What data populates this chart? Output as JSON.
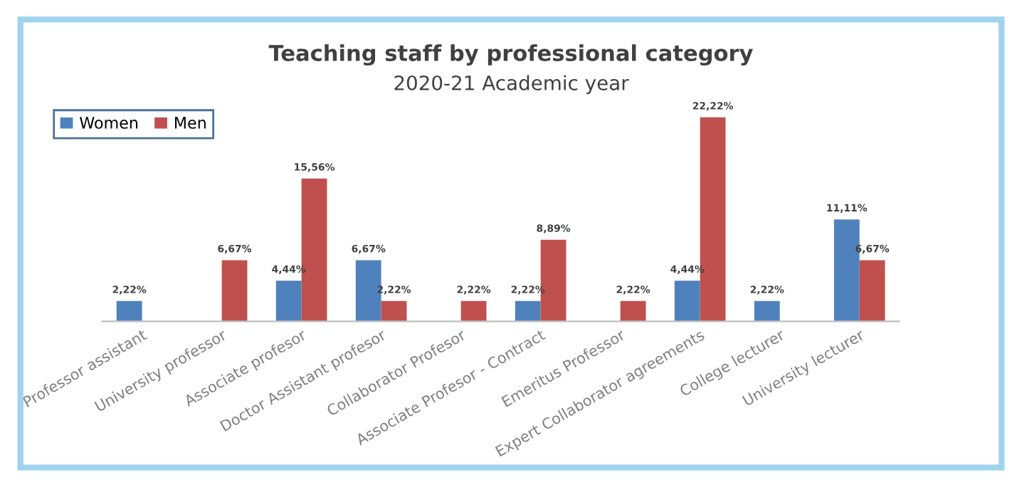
{
  "chart_data": {
    "type": "bar",
    "title": "Teaching staff by professional category",
    "subtitle": "2020-21 Academic year",
    "categories": [
      "Professor assistant",
      "University professor",
      "Associate profesor",
      "Doctor Assistant profesor",
      "Collaborator Profesor",
      "Associate Profesor - Contract",
      "Emeritus Professor",
      "Expert Collaborator agreements",
      "College lecturer",
      "University lecturer"
    ],
    "series": [
      {
        "name": "Women",
        "color": "#4f81bd",
        "values": [
          2.22,
          null,
          4.44,
          6.67,
          null,
          2.22,
          null,
          4.44,
          2.22,
          11.11
        ],
        "value_labels": [
          "2,22%",
          null,
          "4,44%",
          "6,67%",
          null,
          "2,22%",
          null,
          "4,44%",
          "2,22%",
          "11,11%"
        ]
      },
      {
        "name": "Men",
        "color": "#c0504d",
        "values": [
          null,
          6.67,
          15.56,
          2.22,
          2.22,
          8.89,
          2.22,
          22.22,
          null,
          6.67
        ],
        "value_labels": [
          null,
          "6,67%",
          "15,56%",
          "2,22%",
          "2,22%",
          "8,89%",
          "2,22%",
          "22,22%",
          null,
          "6,67%"
        ]
      }
    ],
    "legend": "top left",
    "grid": false
  }
}
